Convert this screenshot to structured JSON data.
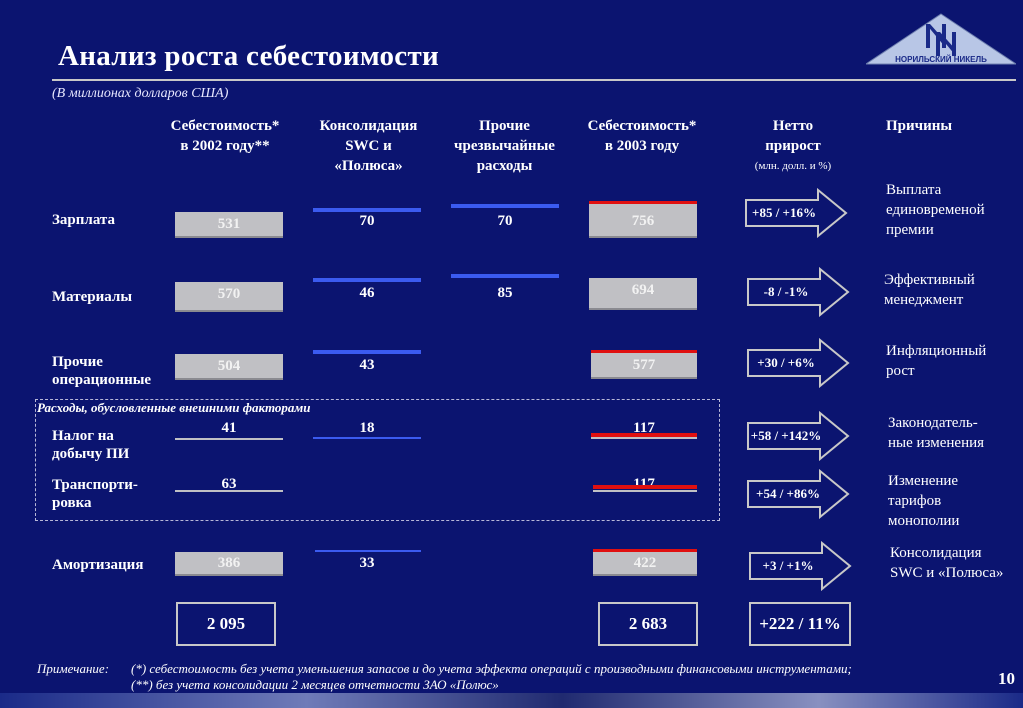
{
  "title": "Анализ роста себестоимости",
  "subtitle": "(В миллионах долларов США)",
  "logo_text": "НОРИЛЬСКИЙ НИКЕЛЬ",
  "headers": {
    "cost2002": [
      "Себестоимость*",
      "в 2002 году**"
    ],
    "swc": [
      "Консолидация",
      "SWC и",
      "«Полюса»"
    ],
    "extra": [
      "Прочие",
      "чрезвычайные",
      "расходы"
    ],
    "cost2003": [
      "Себестоимость*",
      "в 2003 году"
    ],
    "net": [
      "Нетто",
      "прирост"
    ],
    "net_unit": "(млн. долл. и %)",
    "reasons": "Причины"
  },
  "external_group_label": "Расходы, обусловленные внешними факторами",
  "rows": [
    {
      "label": [
        "Зарплата"
      ],
      "cost2002": "531",
      "swc": "70",
      "extra": "70",
      "cost2003": "756",
      "net": "+85 / +16%",
      "reason": [
        "Выплата",
        "единовременой",
        "премии"
      ]
    },
    {
      "label": [
        "Материалы"
      ],
      "cost2002": "570",
      "swc": "46",
      "extra": "85",
      "cost2003": "694",
      "net": "-8 / -1%",
      "reason": [
        "Эффективный",
        "менеджмент"
      ]
    },
    {
      "label": [
        "Прочие",
        "операционные"
      ],
      "cost2002": "504",
      "swc": "43",
      "extra": "",
      "cost2003": "577",
      "net": "+30 / +6%",
      "reason": [
        "Инфляционный",
        "рост"
      ]
    },
    {
      "label": [
        "Налог на",
        "добычу ПИ"
      ],
      "cost2002": "41",
      "swc": "18",
      "extra": "",
      "cost2003": "117",
      "net": "+58 / +142%",
      "reason": [
        "Законодатель-",
        "ные изменения"
      ]
    },
    {
      "label": [
        "Транспорти-",
        "ровка"
      ],
      "cost2002": "63",
      "swc": "",
      "extra": "",
      "cost2003": "117",
      "net": "+54 / +86%",
      "reason": [
        "Изменение",
        "тарифов",
        "монополии"
      ]
    },
    {
      "label": [
        "Амортизация"
      ],
      "cost2002": "386",
      "swc": "33",
      "extra": "",
      "cost2003": "422",
      "net": "+3 / +1%",
      "reason": [
        "Консолидация",
        "SWC и «Полюса»"
      ]
    }
  ],
  "totals": {
    "cost2002": "2 095",
    "cost2003": "2 683",
    "net": "+222 / 11%"
  },
  "note": {
    "label": "Примечание:",
    "line1": "(*) себестоимость без учета уменьшения запасов и до учета эффекта операций с производными финансовыми инструментами;",
    "line2": "(**) без учета консолидации 2 месяцев отчетности ЗАО «Полюс»"
  },
  "page_number": "10"
}
